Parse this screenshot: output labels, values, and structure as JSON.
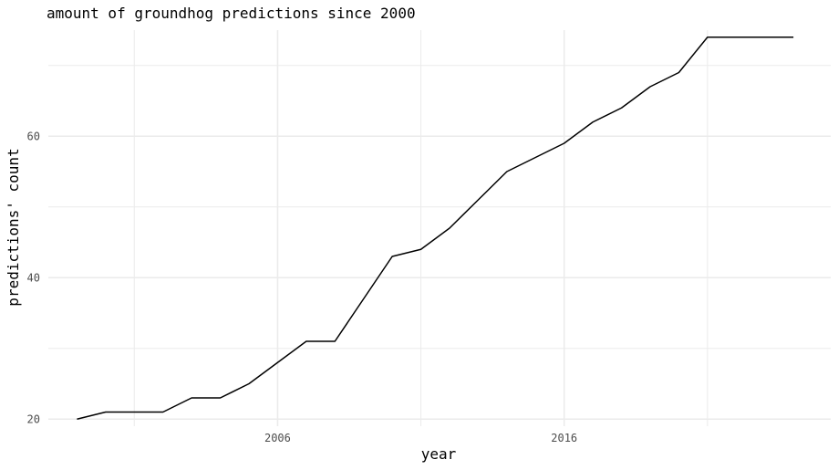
{
  "chart_data": {
    "type": "line",
    "title": "amount of groundhog predictions since 2000",
    "xlabel": "year",
    "ylabel": "predictions' count",
    "x": [
      1999,
      2000,
      2001,
      2002,
      2003,
      2004,
      2005,
      2006,
      2007,
      2008,
      2009,
      2010,
      2011,
      2012,
      2013,
      2014,
      2015,
      2016,
      2017,
      2018,
      2019,
      2020,
      2021,
      2022,
      2023,
      2024
    ],
    "series": [
      {
        "values": [
          20,
          21,
          21,
          21,
          23,
          23,
          25,
          28,
          31,
          31,
          37,
          43,
          44,
          47,
          51,
          55,
          57,
          59,
          62,
          64,
          67,
          69,
          74,
          74,
          74,
          74
        ]
      }
    ],
    "x_ticks": [
      2006,
      2016
    ],
    "x_tick_labels": [
      "2006",
      "2016"
    ],
    "y_ticks": [
      20,
      40,
      60
    ],
    "y_tick_labels": [
      "20",
      "40",
      "60"
    ],
    "xlim": [
      1998,
      2025.3
    ],
    "ylim": [
      19,
      75
    ],
    "grid": true,
    "line_color": "#000000",
    "grid_color": "#ebebeb"
  }
}
